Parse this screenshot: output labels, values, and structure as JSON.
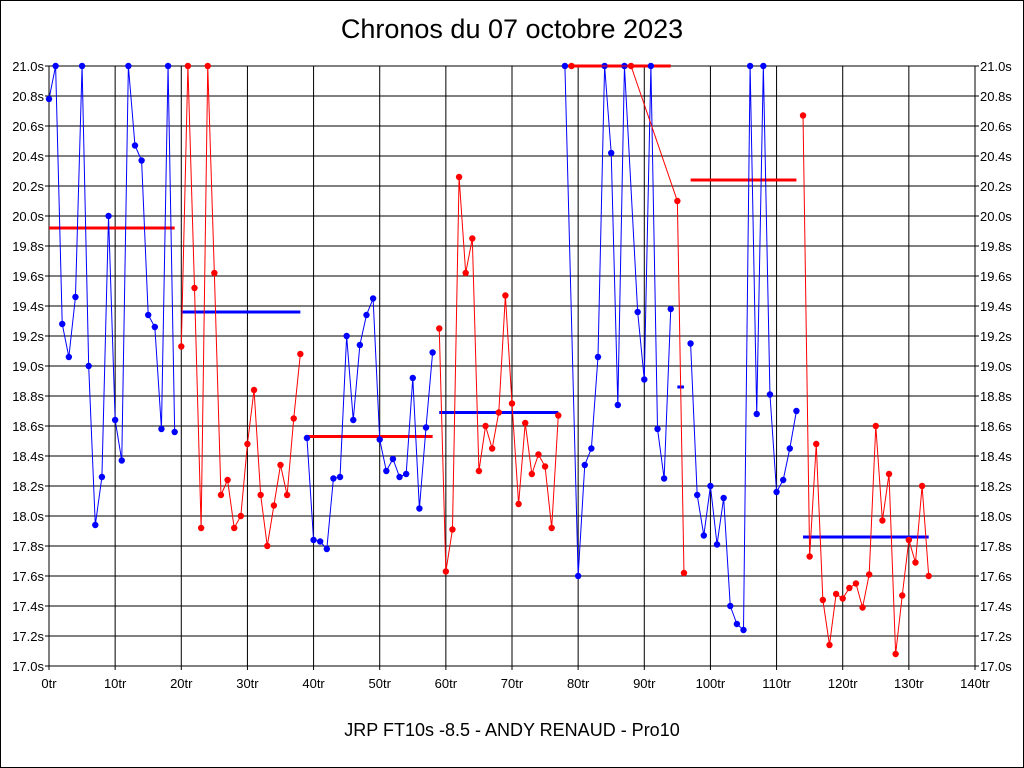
{
  "chart_data": {
    "type": "line",
    "title": "Chronos du 07 octobre 2023",
    "footer": "JRP FT10s -8.5 - ANDY RENAUD - Pro10",
    "xlim": [
      0,
      140
    ],
    "ylim": [
      17.0,
      21.0
    ],
    "x_ticks": [
      "0tr",
      "10tr",
      "20tr",
      "30tr",
      "40tr",
      "50tr",
      "60tr",
      "70tr",
      "80tr",
      "90tr",
      "100tr",
      "110tr",
      "120tr",
      "130tr",
      "140tr"
    ],
    "y_ticks": [
      "17.0s",
      "17.2s",
      "17.4s",
      "17.6s",
      "17.8s",
      "18.0s",
      "18.2s",
      "18.4s",
      "18.6s",
      "18.8s",
      "19.0s",
      "19.2s",
      "19.4s",
      "19.6s",
      "19.8s",
      "20.0s",
      "20.2s",
      "20.4s",
      "20.6s",
      "20.8s",
      "21.0s"
    ],
    "grid": true,
    "colors": {
      "blue": "#0000ff",
      "red": "#ff0000",
      "grid": "#000000"
    },
    "series": [
      {
        "color": "blue",
        "x": [
          0,
          1,
          2,
          3,
          4,
          5,
          6,
          7,
          8,
          9,
          10,
          11,
          12,
          13,
          14,
          15,
          16,
          17,
          18,
          19
        ],
        "y": [
          20.78,
          21.0,
          19.28,
          19.06,
          19.46,
          21.0,
          19.0,
          17.94,
          18.26,
          20.0,
          18.64,
          18.37,
          21.0,
          20.47,
          20.37,
          19.34,
          19.26,
          18.58,
          21.0,
          18.56
        ]
      },
      {
        "color": "red",
        "x": [
          20,
          21,
          22,
          23,
          24,
          25,
          26,
          27,
          28,
          29,
          30,
          31,
          32,
          33,
          34,
          35,
          36,
          37,
          38
        ],
        "y": [
          19.13,
          21.0,
          19.52,
          17.92,
          21.0,
          19.62,
          18.14,
          18.24,
          17.92,
          18.0,
          18.48,
          18.84,
          18.14,
          17.8,
          18.07,
          18.34,
          18.14,
          18.65,
          19.08
        ]
      },
      {
        "color": "blue",
        "x": [
          39,
          40,
          41,
          42,
          43,
          44,
          45,
          46,
          47,
          48,
          49,
          50,
          51,
          52,
          53,
          54,
          55,
          56,
          57,
          58
        ],
        "y": [
          18.52,
          17.84,
          17.83,
          17.78,
          18.25,
          18.26,
          19.2,
          18.64,
          19.14,
          19.34,
          19.45,
          18.51,
          18.3,
          18.38,
          18.26,
          18.28,
          18.92,
          18.05,
          18.59,
          19.09
        ]
      },
      {
        "color": "red",
        "x": [
          59,
          60,
          61,
          62,
          63,
          64,
          65,
          66,
          67,
          68,
          69,
          70,
          71,
          72,
          73,
          74,
          75,
          76,
          77
        ],
        "y": [
          19.25,
          17.63,
          17.91,
          20.26,
          19.62,
          19.85,
          18.3,
          18.6,
          18.45,
          18.69,
          19.47,
          18.75,
          18.08,
          18.62,
          18.28,
          18.41,
          18.33,
          17.92,
          18.67
        ]
      },
      {
        "color": "blue",
        "x": [
          78,
          80,
          81,
          82,
          83,
          84,
          85,
          86,
          87,
          89,
          90,
          91,
          92,
          93,
          94
        ],
        "y": [
          21.0,
          17.6,
          18.34,
          18.45,
          19.06,
          21.0,
          20.42,
          18.74,
          21.0,
          19.36,
          18.91,
          21.0,
          18.58,
          18.25,
          19.38
        ]
      },
      {
        "color": "red",
        "x": [
          79,
          88,
          95,
          96
        ],
        "y": [
          21.0,
          21.0,
          20.1,
          17.62
        ]
      },
      {
        "color": "blue",
        "x": [
          97,
          98,
          99,
          100,
          101,
          102,
          103,
          104,
          105,
          106,
          107,
          108,
          109,
          110,
          111,
          112,
          113
        ],
        "y": [
          19.15,
          18.14,
          17.87,
          18.2,
          17.81,
          18.12,
          17.4,
          17.28,
          17.24,
          21.0,
          18.68,
          21.0,
          18.81,
          18.16,
          18.24,
          18.45,
          18.7
        ]
      },
      {
        "color": "red",
        "x": [
          114,
          115,
          116,
          117,
          118,
          119,
          120,
          121,
          122,
          123,
          124,
          125,
          126,
          127,
          128,
          129,
          130,
          131,
          132,
          133
        ],
        "y": [
          20.67,
          17.73,
          18.48,
          17.44,
          17.14,
          17.48,
          17.45,
          17.52,
          17.55,
          17.39,
          17.61,
          18.6,
          17.97,
          18.28,
          17.08,
          17.47,
          17.84,
          17.69,
          18.2,
          17.6
        ]
      }
    ],
    "average_lines": [
      {
        "color": "red",
        "x": [
          0,
          19
        ],
        "y": 19.92
      },
      {
        "color": "blue",
        "x": [
          20,
          38
        ],
        "y": 19.36
      },
      {
        "color": "red",
        "x": [
          39,
          58
        ],
        "y": 18.53
      },
      {
        "color": "blue",
        "x": [
          59,
          77
        ],
        "y": 18.69
      },
      {
        "color": "red",
        "x": [
          78,
          94
        ],
        "y": 21.0
      },
      {
        "color": "blue",
        "x": [
          95,
          96
        ],
        "y": 18.86
      },
      {
        "color": "red",
        "x": [
          97,
          113
        ],
        "y": 20.24
      },
      {
        "color": "blue",
        "x": [
          114,
          133
        ],
        "y": 17.86
      }
    ]
  }
}
